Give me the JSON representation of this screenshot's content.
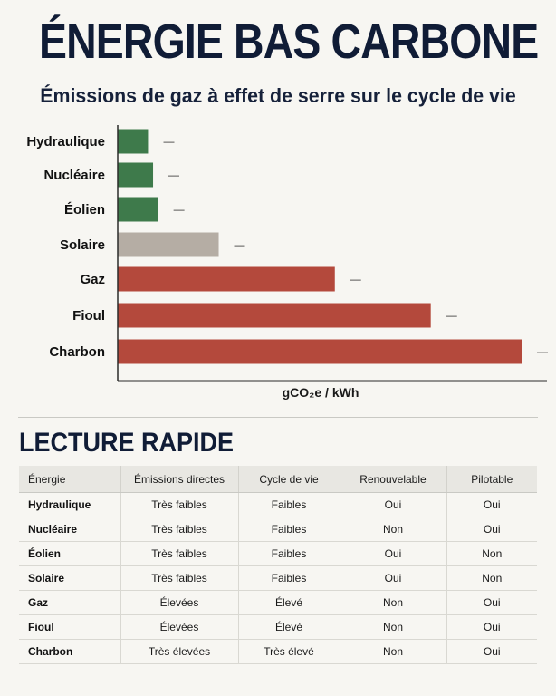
{
  "header": {
    "title": "ÉNERGIE BAS CARBONE",
    "subtitle": "Émissions de gaz à effet de serre sur le cycle de vie"
  },
  "chart_data": {
    "type": "bar",
    "orientation": "horizontal",
    "title": "ÉNERGIE BAS CARBONE",
    "subtitle": "Émissions de gaz à effet de serre sur le cycle de vie",
    "categories": [
      "Hydraulique",
      "Nucléaire",
      "Éolien",
      "Solaire",
      "Gaz",
      "Fioul",
      "Charbon"
    ],
    "values": [
      24,
      28,
      32,
      80,
      172,
      248,
      320
    ],
    "xlim": [
      0,
      330
    ],
    "xlabel": "gCO₂e / kWh",
    "ylabel": "",
    "grid": false,
    "bar_colors": [
      "#3e7a4b",
      "#3e7a4b",
      "#3e7a4b",
      "#b5ada4",
      "#b4493c",
      "#b4493c",
      "#b4493c"
    ],
    "bar_labels": [
      "—",
      "—",
      "—",
      "—",
      "—",
      "—",
      "—"
    ]
  },
  "summary": {
    "title": "LECTURE RAPIDE",
    "columns": [
      "Énergie",
      "Émissions directes",
      "Cycle de vie",
      "Renouvelable",
      "Pilotable"
    ],
    "rows": [
      [
        "Hydraulique",
        "Très faibles",
        "Faibles",
        "Oui",
        "Oui"
      ],
      [
        "Nucléaire",
        "Très faibles",
        "Faibles",
        "Non",
        "Oui"
      ],
      [
        "Éolien",
        "Très faibles",
        "Faibles",
        "Oui",
        "Non"
      ],
      [
        "Solaire",
        "Très faibles",
        "Faibles",
        "Oui",
        "Non"
      ],
      [
        "Gaz",
        "Élevées",
        "Élevé",
        "Non",
        "Oui"
      ],
      [
        "Fioul",
        "Élevées",
        "Élevé",
        "Non",
        "Oui"
      ],
      [
        "Charbon",
        "Très élevées",
        "Très élevé",
        "Non",
        "Oui"
      ]
    ]
  }
}
